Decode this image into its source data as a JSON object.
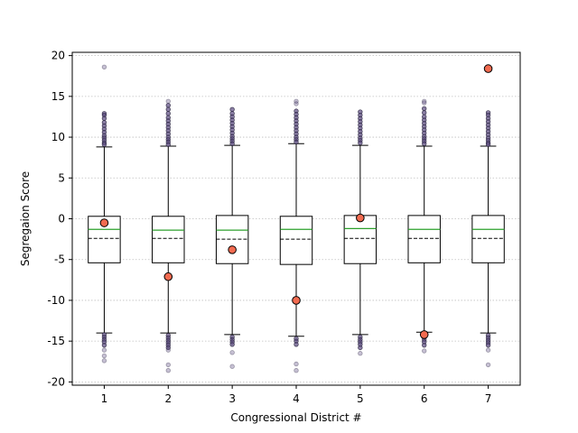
{
  "chart_data": {
    "type": "box",
    "title": "",
    "xlabel": "Congressional District #",
    "ylabel": "Segregaion Score",
    "ylim": [
      -20.4,
      20.4
    ],
    "yticks": [
      -20,
      -15,
      -10,
      -5,
      0,
      5,
      10,
      15,
      20
    ],
    "grid": "y",
    "categories": [
      "1",
      "2",
      "3",
      "4",
      "5",
      "6",
      "7"
    ],
    "boxes": [
      {
        "q1": -5.4,
        "median": -1.3,
        "mean": -2.4,
        "q3": 0.3,
        "whisker_low": -14.0,
        "whisker_high": 8.8
      },
      {
        "q1": -5.4,
        "median": -1.4,
        "mean": -2.4,
        "q3": 0.3,
        "whisker_low": -14.0,
        "whisker_high": 8.9
      },
      {
        "q1": -5.5,
        "median": -1.4,
        "mean": -2.5,
        "q3": 0.4,
        "whisker_low": -14.2,
        "whisker_high": 9.0
      },
      {
        "q1": -5.6,
        "median": -1.3,
        "mean": -2.5,
        "q3": 0.3,
        "whisker_low": -14.4,
        "whisker_high": 9.2
      },
      {
        "q1": -5.5,
        "median": -1.2,
        "mean": -2.4,
        "q3": 0.4,
        "whisker_low": -14.2,
        "whisker_high": 9.0
      },
      {
        "q1": -5.4,
        "median": -1.3,
        "mean": -2.4,
        "q3": 0.4,
        "whisker_low": -13.9,
        "whisker_high": 8.9
      },
      {
        "q1": -5.4,
        "median": -1.3,
        "mean": -2.4,
        "q3": 0.4,
        "whisker_low": -14.0,
        "whisker_high": 8.9
      }
    ],
    "outliers": [
      [
        18.6,
        12.9,
        12.7,
        12.3,
        11.8,
        11.4,
        11.0,
        10.6,
        10.2,
        9.9,
        9.6,
        9.3,
        9.1,
        -14.2,
        -14.5,
        -14.8,
        -15.1,
        -15.5,
        -16.1,
        -16.8,
        -17.4
      ],
      [
        14.4,
        13.9,
        13.4,
        12.9,
        12.4,
        12.0,
        11.6,
        11.2,
        10.8,
        10.4,
        10.0,
        9.7,
        9.4,
        9.1,
        -14.3,
        -14.6,
        -14.9,
        -15.2,
        -15.5,
        -15.8,
        -16.1,
        -17.9,
        -18.6
      ],
      [
        13.4,
        12.9,
        12.5,
        12.1,
        11.7,
        11.3,
        10.9,
        10.5,
        10.1,
        9.8,
        9.5,
        9.2,
        -14.5,
        -14.8,
        -15.1,
        -15.4,
        -16.4,
        -18.1
      ],
      [
        14.4,
        14.1,
        13.2,
        12.8,
        12.4,
        12.0,
        11.6,
        11.2,
        10.8,
        10.4,
        10.0,
        9.7,
        9.4,
        -14.7,
        -15.0,
        -15.4,
        -17.8,
        -18.6
      ],
      [
        13.1,
        12.7,
        12.3,
        11.9,
        11.5,
        11.1,
        10.7,
        10.3,
        9.9,
        9.6,
        9.3,
        -14.5,
        -14.8,
        -15.1,
        -15.4,
        -15.8,
        -16.5
      ],
      [
        14.4,
        14.2,
        13.5,
        13.0,
        12.5,
        12.1,
        11.7,
        11.3,
        10.9,
        10.5,
        10.1,
        9.8,
        9.5,
        9.2,
        -14.2,
        -14.5,
        -14.8,
        -15.1,
        -15.5,
        -16.2
      ],
      [
        13.0,
        12.7,
        12.3,
        11.9,
        11.5,
        11.1,
        10.7,
        10.3,
        9.9,
        9.6,
        9.3,
        9.1,
        -14.3,
        -14.6,
        -14.9,
        -15.2,
        -15.5,
        -16.1,
        -17.9
      ]
    ],
    "highlight_points": [
      -0.5,
      -7.1,
      -3.8,
      -10.0,
      0.1,
      -14.2,
      18.4
    ],
    "colors": {
      "box_edge": "#000000",
      "median": "#2ca02c",
      "mean": "#000000",
      "outlier_fill": "#5b4a80",
      "highlight_fill": "#f26b50",
      "grid": "#bfbfbf"
    }
  }
}
